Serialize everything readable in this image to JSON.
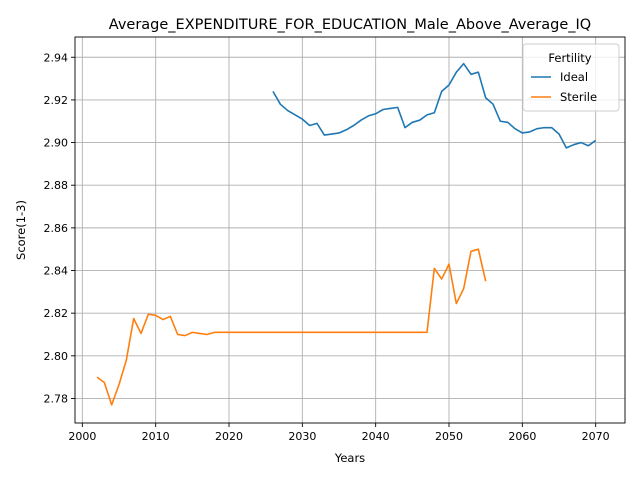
{
  "chart_data": {
    "type": "line",
    "title": "Average_EXPENDITURE_FOR_EDUCATION_Male_Above_Average_IQ",
    "xlabel": "Years",
    "ylabel": "Score(1-3)",
    "xlim": [
      1999,
      2074
    ],
    "ylim": [
      2.7685,
      2.9495
    ],
    "xticks": [
      2000,
      2010,
      2020,
      2030,
      2040,
      2050,
      2060,
      2070
    ],
    "xtick_labels": [
      "2000",
      "2010",
      "2020",
      "2030",
      "2040",
      "2050",
      "2060",
      "2070"
    ],
    "yticks": [
      2.78,
      2.8,
      2.82,
      2.84,
      2.86,
      2.88,
      2.9,
      2.92,
      2.94
    ],
    "ytick_labels": [
      "2.78",
      "2.80",
      "2.82",
      "2.84",
      "2.86",
      "2.88",
      "2.90",
      "2.92",
      "2.94"
    ],
    "grid": true,
    "legend": {
      "title": "Fertility",
      "position": "top-right"
    },
    "series": [
      {
        "name": "Ideal",
        "color": "#1f77b4",
        "x": [
          2026,
          2027,
          2028,
          2029,
          2030,
          2031,
          2032,
          2033,
          2034,
          2035,
          2036,
          2037,
          2038,
          2039,
          2040,
          2041,
          2042,
          2043,
          2044,
          2045,
          2046,
          2047,
          2048,
          2049,
          2050,
          2051,
          2052,
          2053,
          2054,
          2055,
          2056,
          2057,
          2058,
          2059,
          2060,
          2061,
          2062,
          2063,
          2064,
          2065,
          2066,
          2067,
          2068,
          2069,
          2070
        ],
        "y": [
          2.924,
          2.918,
          2.915,
          2.913,
          2.911,
          2.908,
          2.909,
          2.9035,
          2.904,
          2.9045,
          2.906,
          2.908,
          2.9105,
          2.9125,
          2.9135,
          2.9155,
          2.916,
          2.9165,
          2.907,
          2.9095,
          2.9105,
          2.913,
          2.914,
          2.924,
          2.927,
          2.933,
          2.937,
          2.932,
          2.933,
          2.921,
          2.918,
          2.91,
          2.9095,
          2.9065,
          2.9045,
          2.905,
          2.9065,
          2.907,
          2.907,
          2.904,
          2.8975,
          2.899,
          2.9,
          2.8985,
          2.901
        ]
      },
      {
        "name": "Sterile",
        "color": "#ff7f0e",
        "x": [
          2002,
          2003,
          2004,
          2005,
          2006,
          2007,
          2008,
          2009,
          2010,
          2011,
          2012,
          2013,
          2014,
          2015,
          2016,
          2017,
          2018,
          2019,
          2020,
          2021,
          2022,
          2023,
          2024,
          2025,
          2026,
          2027,
          2028,
          2029,
          2030,
          2031,
          2032,
          2033,
          2034,
          2035,
          2036,
          2037,
          2038,
          2039,
          2040,
          2041,
          2042,
          2043,
          2044,
          2045,
          2046,
          2047,
          2048,
          2049,
          2050,
          2051,
          2052,
          2053,
          2054,
          2055
        ],
        "y": [
          2.79,
          2.7875,
          2.777,
          2.7865,
          2.798,
          2.8175,
          2.8105,
          2.8195,
          2.819,
          2.817,
          2.8185,
          2.81,
          2.8095,
          2.811,
          2.8105,
          2.81,
          2.811,
          2.811,
          2.811,
          2.811,
          2.811,
          2.811,
          2.811,
          2.811,
          2.811,
          2.811,
          2.811,
          2.811,
          2.811,
          2.811,
          2.811,
          2.811,
          2.811,
          2.811,
          2.811,
          2.811,
          2.811,
          2.811,
          2.811,
          2.811,
          2.811,
          2.811,
          2.811,
          2.811,
          2.811,
          2.811,
          2.841,
          2.836,
          2.843,
          2.8245,
          2.8315,
          2.849,
          2.85,
          2.835
        ]
      }
    ]
  }
}
